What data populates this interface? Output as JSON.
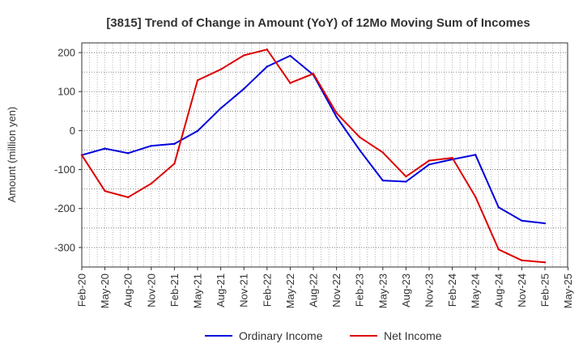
{
  "chart_data": {
    "type": "line",
    "title": "[3815]  Trend of Change in Amount (YoY) of 12Mo Moving Sum of Incomes",
    "xlabel": "",
    "ylabel": "Amount (million yen)",
    "ylim": [
      -350,
      225
    ],
    "yticks": [
      -300,
      -200,
      -100,
      0,
      100,
      200
    ],
    "grid": true,
    "legend_position": "bottom",
    "categories": [
      "Feb-20",
      "May-20",
      "Aug-20",
      "Nov-20",
      "Feb-21",
      "May-21",
      "Aug-21",
      "Nov-21",
      "Feb-22",
      "May-22",
      "Aug-22",
      "Nov-22",
      "Feb-23",
      "May-23",
      "Aug-23",
      "Nov-23",
      "Feb-24",
      "May-24",
      "Aug-24",
      "Nov-24",
      "Feb-25",
      "May-25"
    ],
    "series": [
      {
        "name": "Ordinary Income",
        "color": "#0000dd",
        "values": [
          -63,
          -46,
          -58,
          -39,
          -34,
          -1,
          57,
          107,
          164,
          192,
          143,
          35,
          -50,
          -128,
          -131,
          -87,
          -74,
          -62,
          -197,
          -231,
          -238,
          null
        ]
      },
      {
        "name": "Net Income",
        "color": "#dd0000",
        "values": [
          -63,
          -155,
          -171,
          -136,
          -85,
          129,
          157,
          193,
          208,
          122,
          146,
          45,
          -17,
          -56,
          -118,
          -77,
          -70,
          -170,
          -305,
          -333,
          -338,
          null
        ]
      }
    ]
  }
}
